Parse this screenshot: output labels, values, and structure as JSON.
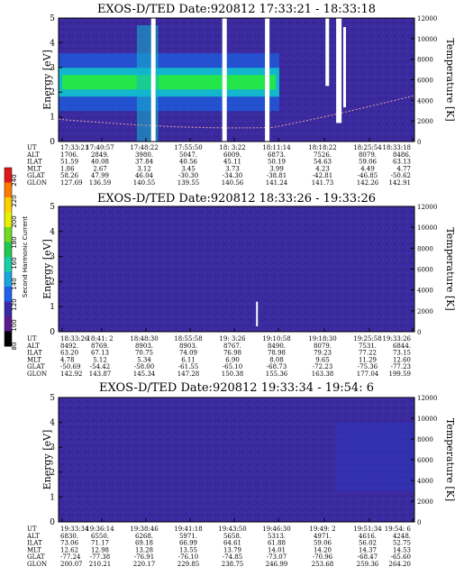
{
  "colors": {
    "background": "#3a2a9e",
    "band_core": "#22e64a",
    "band_mid": "#13b6cc",
    "band_outer": "#1e5fe0",
    "white": "#ffffff"
  },
  "colorbar": {
    "label": "Second Harmonic Current",
    "ticks": [
      "240",
      "220",
      "200",
      "180",
      "160",
      "140",
      "120",
      "100",
      "80"
    ],
    "colors": [
      "#e01818",
      "#ff7a00",
      "#ffd000",
      "#e8f000",
      "#6edc20",
      "#20c850",
      "#18d0a8",
      "#18a8e0",
      "#2060f0",
      "#3a2aa8",
      "#5a1a90",
      "#000000"
    ]
  },
  "chart_data": [
    {
      "type": "heatmap",
      "title": "EXOS-D/TED   Date:920812  17:33:21 - 18:33:18",
      "ylabel": "Energy [eV]",
      "y2label": "Temperature [K]",
      "ylim": [
        0,
        5
      ],
      "y2lim": [
        0,
        12000
      ],
      "yticks": [
        "5",
        "4",
        "3",
        "2",
        "1",
        "0"
      ],
      "y2ticks": [
        "12000",
        "10000",
        "8000",
        "6000",
        "4000",
        "2000",
        "0"
      ],
      "band": {
        "present": true,
        "energy_center_ev": 2.4,
        "x_start_frac": 0.0,
        "x_end_frac": 0.62
      },
      "gaps_frac": [
        0.26,
        0.46,
        0.58
      ],
      "table": {
        "rows": [
          {
            "label": "UT",
            "values": [
              "17:33:21",
              "17:40:57",
              "17:48:22",
              "17:55:50",
              "18: 3:22",
              "18:11:14",
              "18:18:22",
              "18:25:54",
              "18:33:18"
            ]
          },
          {
            "label": "ALT",
            "values": [
              "1706.",
              "2849.",
              "3980.",
              "5047.",
              "6009.",
              "6873.",
              "7526.",
              "8079.",
              "8486."
            ]
          },
          {
            "label": "ILAT",
            "values": [
              "51.59",
              "40.08",
              "37.84",
              "40.56",
              "45.11",
              "50.19",
              "54.63",
              "59.06",
              "63.13"
            ]
          },
          {
            "label": "MLT",
            "values": [
              "1.86",
              "2.67",
              "3.12",
              "3.45",
              "3.73",
              "3.99",
              "4.23",
              "4.49",
              "4.77"
            ]
          },
          {
            "label": "GLAT",
            "values": [
              "58.26",
              "47.99",
              "46.04",
              "-30.30",
              "-34.30",
              "-38.81",
              "-42.81",
              "-46.85",
              "-50.62"
            ]
          },
          {
            "label": "GLON",
            "values": [
              "127.69",
              "136.59",
              "140.55",
              "139.55",
              "140.56",
              "141.24",
              "141.73",
              "142.26",
              "142.91"
            ]
          }
        ]
      }
    },
    {
      "type": "heatmap",
      "title": "EXOS-D/TED   Date:920812  18:33:26 - 19:33:26",
      "ylabel": "Energy [eV]",
      "y2label": "Temperature [K]",
      "ylim": [
        0,
        5
      ],
      "y2lim": [
        0,
        12000
      ],
      "yticks": [
        "5",
        "4",
        "3",
        "2",
        "1",
        "0"
      ],
      "y2ticks": [
        "12000",
        "10000",
        "8000",
        "6000",
        "4000",
        "2000",
        "0"
      ],
      "band": {
        "present": false
      },
      "gaps_frac": [],
      "table": {
        "rows": [
          {
            "label": "UT",
            "values": [
              "18:33:26",
              "18:41: 2",
              "18:48:30",
              "18:55:58",
              "19: 3:26",
              "19:10:58",
              "19:18:30",
              "19:25:58",
              "19:33:26"
            ]
          },
          {
            "label": "ALT",
            "values": [
              "8492.",
              "8769.",
              "8903.",
              "8903.",
              "8767.",
              "8490.",
              "8079.",
              "7531.",
              "6844."
            ]
          },
          {
            "label": "ILAT",
            "values": [
              "63.20",
              "67.13",
              "70.75",
              "74.09",
              "76.98",
              "78.98",
              "79.23",
              "77.22",
              "73.15"
            ]
          },
          {
            "label": "MLT",
            "values": [
              "4.78",
              "5.12",
              "5.34",
              "6.11",
              "6.90",
              "8.08",
              "9.65",
              "11.29",
              "12.60"
            ]
          },
          {
            "label": "GLAT",
            "values": [
              "-50.69",
              "-54.42",
              "-58.00",
              "-61.55",
              "-65.10",
              "-68.73",
              "-72.23",
              "-75.36",
              "-77.23"
            ]
          },
          {
            "label": "GLON",
            "values": [
              "142.92",
              "143.87",
              "145.34",
              "147.28",
              "150.38",
              "155.36",
              "163.38",
              "177.04",
              "199.59"
            ]
          }
        ]
      }
    },
    {
      "type": "heatmap",
      "title": "EXOS-D/TED   Date:920812  19:33:34 - 19:54: 6",
      "ylabel": "Energy [eV]",
      "y2label": "Temperature [K]",
      "ylim": [
        0,
        5
      ],
      "y2lim": [
        0,
        12000
      ],
      "yticks": [
        "5",
        "4",
        "3",
        "2",
        "1",
        "0"
      ],
      "y2ticks": [
        "12000",
        "10000",
        "8000",
        "6000",
        "4000",
        "2000",
        "0"
      ],
      "band": {
        "present": false
      },
      "gaps_frac": [],
      "table": {
        "rows": [
          {
            "label": "UT",
            "values": [
              "19:33:34",
              "19:36:14",
              "19:38:46",
              "19:41:18",
              "19:43:50",
              "19:46:30",
              "19:49: 2",
              "19:51:34",
              "19:54: 6"
            ]
          },
          {
            "label": "ALT",
            "values": [
              "6830.",
              "6550.",
              "6268.",
              "5971.",
              "5658.",
              "5313.",
              "4971.",
              "4616.",
              "4248."
            ]
          },
          {
            "label": "ILAT",
            "values": [
              "73.06",
              "71.17",
              "69.18",
              "66.99",
              "64.61",
              "61.88",
              "59.06",
              "56.02",
              "52.75"
            ]
          },
          {
            "label": "MLT",
            "values": [
              "12.62",
              "12.98",
              "13.28",
              "13.55",
              "13.79",
              "14.01",
              "14.20",
              "14.37",
              "14.53"
            ]
          },
          {
            "label": "GLAT",
            "values": [
              "-77.24",
              "-77.38",
              "-76.91",
              "-76.10",
              "-74.85",
              "-73.07",
              "-70.96",
              "-68.47",
              "-65.60"
            ]
          },
          {
            "label": "GLON",
            "values": [
              "200.07",
              "210.21",
              "220.17",
              "229.85",
              "238.75",
              "246.99",
              "253.68",
              "259.36",
              "264.20"
            ]
          }
        ]
      }
    }
  ]
}
